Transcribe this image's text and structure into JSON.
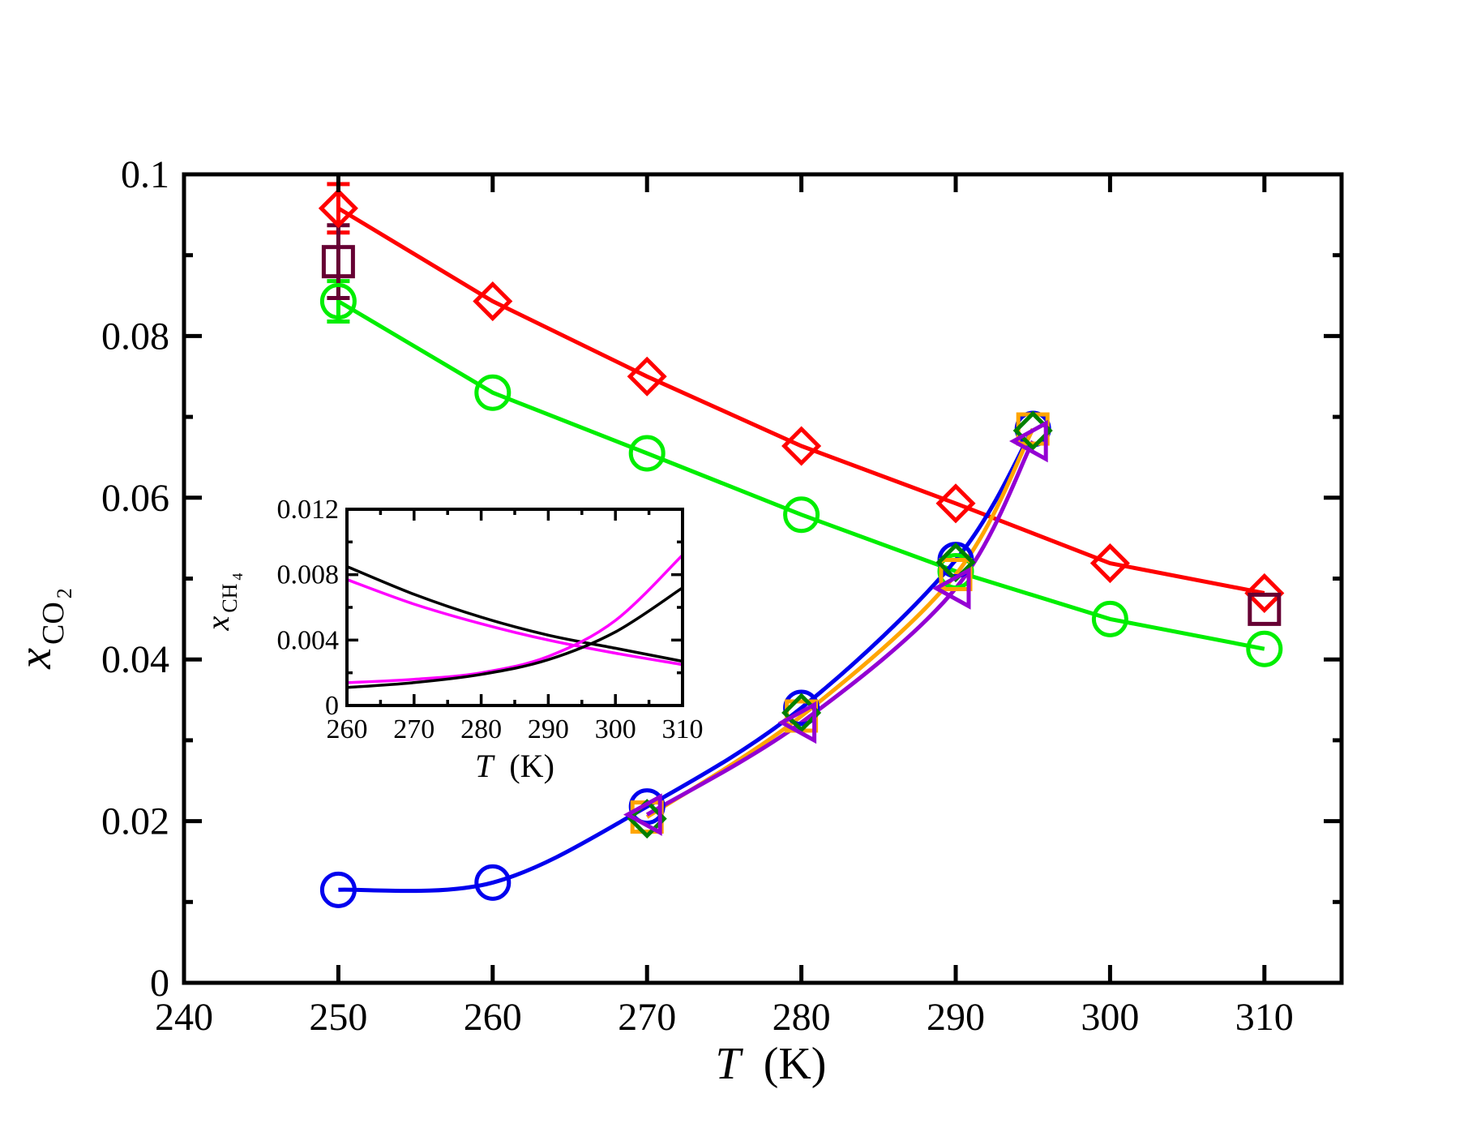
{
  "chart_data": [
    {
      "type": "scatter",
      "role": "main",
      "xlabel": "T (K)",
      "xlabel_italic": "T",
      "xlabel_unit": "(K)",
      "ylabel": "x_CO2",
      "ylabel_var": "x",
      "ylabel_sub": "CO",
      "ylabel_subsub": "2",
      "xlim": [
        240,
        315
      ],
      "ylim": [
        0,
        0.1
      ],
      "xticks": [
        240,
        250,
        260,
        270,
        280,
        290,
        300,
        310
      ],
      "xtick_labels": [
        "240",
        "250",
        "260",
        "270",
        "280",
        "290",
        "300",
        "310"
      ],
      "yticks": [
        0,
        0.02,
        0.04,
        0.06,
        0.08,
        0.1
      ],
      "ytick_labels": [
        "0",
        "0.02",
        "0.04",
        "0.06",
        "0.08",
        "0.1"
      ],
      "series": [
        {
          "name": "red-diamonds",
          "color": "#ff0000",
          "marker": "diamond",
          "curve": "linear",
          "x": [
            250,
            260,
            270,
            280,
            290,
            300,
            310
          ],
          "y": [
            0.0958,
            0.0843,
            0.075,
            0.0664,
            0.0593,
            0.0519,
            0.0482
          ],
          "err": [
            0.003,
            0,
            0,
            0,
            0,
            0,
            0
          ]
        },
        {
          "name": "green-circles",
          "color": "#00ee00",
          "marker": "circle",
          "curve": "linear",
          "x": [
            250,
            260,
            270,
            280,
            290,
            300,
            310
          ],
          "y": [
            0.0843,
            0.073,
            0.0655,
            0.0579,
            0.0509,
            0.045,
            0.0413
          ],
          "err": [
            0.0025,
            0,
            0,
            0,
            0,
            0,
            0
          ]
        },
        {
          "name": "maroon-squares",
          "color": "#660033",
          "marker": "square",
          "curve": "none",
          "x": [
            250,
            310
          ],
          "y": [
            0.0892,
            0.0462
          ],
          "err": [
            0.0045,
            0
          ]
        },
        {
          "name": "blue-circles",
          "color": "#0000ee",
          "marker": "circle",
          "curve": "spline",
          "x": [
            250,
            260,
            270,
            280,
            290,
            295
          ],
          "y": [
            0.0115,
            0.0124,
            0.0218,
            0.034,
            0.0523,
            0.0685
          ],
          "err": [
            0,
            0,
            0,
            0,
            0,
            0
          ]
        },
        {
          "name": "orange-squares",
          "color": "#ffa500",
          "marker": "square",
          "curve": "spline",
          "x": [
            270,
            280,
            290,
            295
          ],
          "y": [
            0.0205,
            0.033,
            0.0505,
            0.0685
          ],
          "err": [
            0,
            0,
            0,
            0
          ]
        },
        {
          "name": "darkgreen-diamonds",
          "color": "#008000",
          "marker": "diamond",
          "curve": "none",
          "x": [
            270,
            280,
            290,
            295
          ],
          "y": [
            0.0203,
            0.0334,
            0.052,
            0.0683
          ],
          "err": [
            0,
            0,
            0,
            0
          ]
        },
        {
          "name": "violet-triangles",
          "color": "#9400d3",
          "marker": "triangle-left",
          "curve": "spline",
          "x": [
            270,
            280,
            290,
            295
          ],
          "y": [
            0.0208,
            0.0322,
            0.0488,
            0.067
          ],
          "err": [
            0,
            0,
            0,
            0
          ]
        }
      ]
    },
    {
      "type": "line",
      "role": "inset",
      "xlabel": "T (K)",
      "xlabel_italic": "T",
      "xlabel_unit": "(K)",
      "ylabel": "x_CH4",
      "ylabel_var": "x",
      "ylabel_sub": "CH",
      "ylabel_subsub": "4",
      "xlim": [
        260,
        310
      ],
      "ylim": [
        0,
        0.012
      ],
      "xticks": [
        260,
        270,
        280,
        290,
        300,
        310
      ],
      "xtick_labels": [
        "260",
        "270",
        "280",
        "290",
        "300",
        "310"
      ],
      "yticks": [
        0,
        0.004,
        0.008,
        0.012
      ],
      "ytick_labels": [
        "0",
        "0.004",
        "0.008",
        "0.012"
      ],
      "series": [
        {
          "name": "black-decreasing",
          "color": "#000000",
          "x": [
            260,
            270,
            280,
            290,
            300,
            310
          ],
          "y": [
            0.0085,
            0.0068,
            0.0054,
            0.0043,
            0.0035,
            0.0027
          ]
        },
        {
          "name": "magenta-decreasing",
          "color": "#ff00ff",
          "x": [
            260,
            270,
            280,
            290,
            300,
            310
          ],
          "y": [
            0.0077,
            0.0062,
            0.005,
            0.004,
            0.0032,
            0.0025
          ]
        },
        {
          "name": "magenta-increasing",
          "color": "#ff00ff",
          "x": [
            260,
            270,
            280,
            290,
            300,
            310
          ],
          "y": [
            0.0014,
            0.0016,
            0.002,
            0.003,
            0.0052,
            0.0092
          ]
        },
        {
          "name": "black-increasing",
          "color": "#000000",
          "x": [
            260,
            270,
            280,
            290,
            300,
            310
          ],
          "y": [
            0.0011,
            0.0014,
            0.0019,
            0.0028,
            0.0045,
            0.0072
          ]
        }
      ]
    }
  ]
}
